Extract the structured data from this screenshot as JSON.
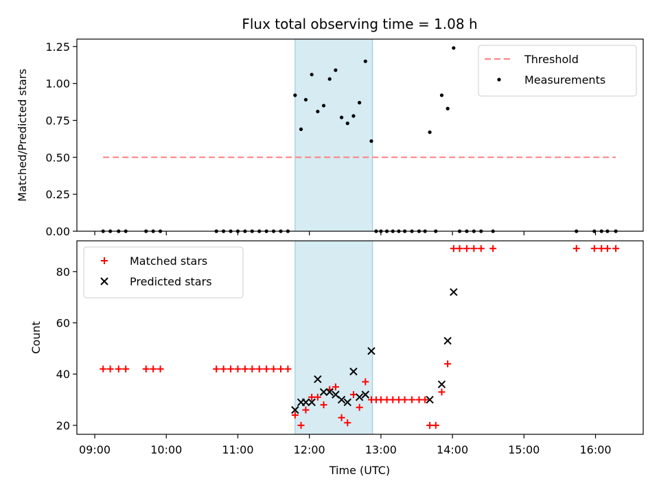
{
  "chart_data": {
    "title": "Flux total observing time = 1.08 h",
    "xlabel": "Time (UTC)",
    "x_ticks": [
      "09:00",
      "10:00",
      "11:00",
      "12:00",
      "13:00",
      "14:00",
      "15:00",
      "16:00"
    ],
    "xlim": [
      "08:45",
      "16:40"
    ],
    "shaded_interval": [
      "11:48",
      "12:53"
    ],
    "shade_color": "#add8e6",
    "panels": [
      {
        "type": "scatter",
        "ylabel": "Matched/Predicted stars",
        "ylim": [
          0,
          1.3
        ],
        "y_ticks": [
          0.0,
          0.25,
          0.5,
          0.75,
          1.0,
          1.25
        ],
        "y_tick_labels": [
          "0.00",
          "0.25",
          "0.50",
          "0.75",
          "1.00",
          "1.25"
        ],
        "legend_position": "upper right",
        "threshold": {
          "name": "Threshold",
          "value": 0.5,
          "x_start": "09:07",
          "x_end": "16:17",
          "color": "#ff7f7f"
        },
        "series": [
          {
            "name": "Measurements",
            "color": "#000000",
            "points": [
              [
                "09:07",
                0
              ],
              [
                "09:13",
                0
              ],
              [
                "09:20",
                0
              ],
              [
                "09:26",
                0
              ],
              [
                "09:43",
                0
              ],
              [
                "09:49",
                0
              ],
              [
                "09:55",
                0
              ],
              [
                "10:42",
                0
              ],
              [
                "10:48",
                0
              ],
              [
                "10:54",
                0
              ],
              [
                "11:00",
                0
              ],
              [
                "11:06",
                0
              ],
              [
                "11:12",
                0
              ],
              [
                "11:18",
                0
              ],
              [
                "11:24",
                0
              ],
              [
                "11:30",
                0
              ],
              [
                "11:36",
                0
              ],
              [
                "11:42",
                0
              ],
              [
                "11:48",
                0.92
              ],
              [
                "11:53",
                0.69
              ],
              [
                "11:57",
                0.89
              ],
              [
                "12:02",
                1.06
              ],
              [
                "12:07",
                0.81
              ],
              [
                "12:12",
                0.85
              ],
              [
                "12:17",
                1.03
              ],
              [
                "12:22",
                1.09
              ],
              [
                "12:27",
                0.77
              ],
              [
                "12:32",
                0.73
              ],
              [
                "12:37",
                0.78
              ],
              [
                "12:42",
                0.87
              ],
              [
                "12:47",
                1.15
              ],
              [
                "12:52",
                0.61
              ],
              [
                "12:56",
                0
              ],
              [
                "13:00",
                0
              ],
              [
                "13:05",
                0
              ],
              [
                "13:10",
                0
              ],
              [
                "13:15",
                0
              ],
              [
                "13:20",
                0
              ],
              [
                "13:26",
                0
              ],
              [
                "13:32",
                0
              ],
              [
                "13:37",
                0
              ],
              [
                "13:41",
                0.67
              ],
              [
                "13:46",
                0
              ],
              [
                "13:51",
                0.92
              ],
              [
                "13:56",
                0.83
              ],
              [
                "14:01",
                1.24
              ],
              [
                "14:06",
                0
              ],
              [
                "14:12",
                0
              ],
              [
                "14:18",
                0
              ],
              [
                "14:24",
                0
              ],
              [
                "14:34",
                0
              ],
              [
                "15:44",
                0
              ],
              [
                "15:59",
                0
              ],
              [
                "16:05",
                0
              ],
              [
                "16:10",
                0
              ],
              [
                "16:17",
                0
              ]
            ]
          }
        ]
      },
      {
        "type": "scatter",
        "ylabel": "Count",
        "ylim": [
          16.5,
          92
        ],
        "y_ticks": [
          20,
          40,
          60,
          80
        ],
        "y_tick_labels": [
          "20",
          "40",
          "60",
          "80"
        ],
        "legend_position": "upper left",
        "series": [
          {
            "name": "Matched stars",
            "marker": "+",
            "color": "#ff0000",
            "points": [
              [
                "09:07",
                42
              ],
              [
                "09:13",
                42
              ],
              [
                "09:20",
                42
              ],
              [
                "09:26",
                42
              ],
              [
                "09:43",
                42
              ],
              [
                "09:49",
                42
              ],
              [
                "09:55",
                42
              ],
              [
                "10:42",
                42
              ],
              [
                "10:48",
                42
              ],
              [
                "10:54",
                42
              ],
              [
                "11:00",
                42
              ],
              [
                "11:06",
                42
              ],
              [
                "11:12",
                42
              ],
              [
                "11:18",
                42
              ],
              [
                "11:24",
                42
              ],
              [
                "11:30",
                42
              ],
              [
                "11:36",
                42
              ],
              [
                "11:42",
                42
              ],
              [
                "11:48",
                24
              ],
              [
                "11:53",
                20
              ],
              [
                "11:57",
                26
              ],
              [
                "12:02",
                31
              ],
              [
                "12:07",
                31
              ],
              [
                "12:12",
                28
              ],
              [
                "12:17",
                34
              ],
              [
                "12:22",
                35
              ],
              [
                "12:27",
                23
              ],
              [
                "12:32",
                21
              ],
              [
                "12:37",
                32
              ],
              [
                "12:42",
                27
              ],
              [
                "12:47",
                37
              ],
              [
                "12:52",
                30
              ],
              [
                "12:56",
                30
              ],
              [
                "13:00",
                30
              ],
              [
                "13:05",
                30
              ],
              [
                "13:10",
                30
              ],
              [
                "13:15",
                30
              ],
              [
                "13:20",
                30
              ],
              [
                "13:26",
                30
              ],
              [
                "13:32",
                30
              ],
              [
                "13:37",
                30
              ],
              [
                "13:41",
                20
              ],
              [
                "13:46",
                20
              ],
              [
                "13:51",
                33
              ],
              [
                "13:56",
                44
              ],
              [
                "14:01",
                89
              ],
              [
                "14:06",
                89
              ],
              [
                "14:12",
                89
              ],
              [
                "14:18",
                89
              ],
              [
                "14:24",
                89
              ],
              [
                "14:34",
                89
              ],
              [
                "15:44",
                89
              ],
              [
                "15:59",
                89
              ],
              [
                "16:05",
                89
              ],
              [
                "16:10",
                89
              ],
              [
                "16:17",
                89
              ]
            ]
          },
          {
            "name": "Predicted stars",
            "marker": "x",
            "color": "#000000",
            "points": [
              [
                "11:48",
                26
              ],
              [
                "11:53",
                29
              ],
              [
                "11:57",
                29
              ],
              [
                "12:02",
                29
              ],
              [
                "12:07",
                38
              ],
              [
                "12:12",
                33
              ],
              [
                "12:17",
                33
              ],
              [
                "12:22",
                32
              ],
              [
                "12:27",
                30
              ],
              [
                "12:32",
                29
              ],
              [
                "12:37",
                41
              ],
              [
                "12:42",
                31
              ],
              [
                "12:47",
                32
              ],
              [
                "12:52",
                49
              ],
              [
                "13:41",
                30
              ],
              [
                "13:51",
                36
              ],
              [
                "13:56",
                53
              ],
              [
                "14:01",
                72
              ]
            ]
          }
        ]
      }
    ]
  }
}
